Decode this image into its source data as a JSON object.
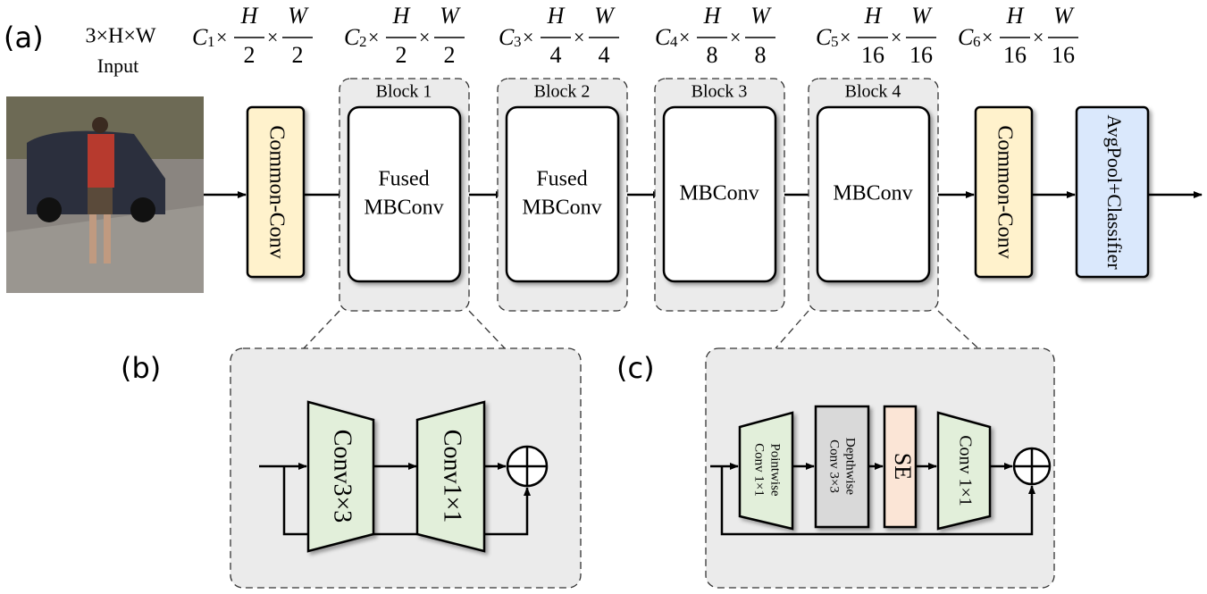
{
  "labels": {
    "a": "(a)",
    "b": "(b)",
    "c": "(c)"
  },
  "input": {
    "dim": "3×H×W",
    "label": "Input"
  },
  "times": "×",
  "dims": [
    {
      "channel": "C",
      "index": "1",
      "height": "H",
      "h_div": "2",
      "width": "W",
      "w_div": "2"
    },
    {
      "channel": "C",
      "index": "2",
      "height": "H",
      "h_div": "2",
      "width": "W",
      "w_div": "2"
    },
    {
      "channel": "C",
      "index": "3",
      "height": "H",
      "h_div": "4",
      "width": "W",
      "w_div": "4"
    },
    {
      "channel": "C",
      "index": "4",
      "height": "H",
      "h_div": "8",
      "width": "W",
      "w_div": "8"
    },
    {
      "channel": "C",
      "index": "5",
      "height": "H",
      "h_div": "16",
      "width": "W",
      "w_div": "16"
    },
    {
      "channel": "C",
      "index": "6",
      "height": "H",
      "h_div": "16",
      "width": "W",
      "w_div": "16"
    }
  ],
  "stages": {
    "stem": "Common-Conv",
    "blocks": [
      {
        "title": "Block 1",
        "lines": [
          "Fused",
          "MBConv"
        ]
      },
      {
        "title": "Block 2",
        "lines": [
          "Fused",
          "MBConv"
        ]
      },
      {
        "title": "Block 3",
        "lines": [
          "MBConv"
        ]
      },
      {
        "title": "Block 4",
        "lines": [
          "MBConv"
        ]
      }
    ],
    "head_conv": "Common-Conv",
    "head": "AvgPool+Classifier"
  },
  "panel_b": {
    "conv_a": "Conv3×3",
    "conv_b": "Conv1×1"
  },
  "panel_c": {
    "pointwise": [
      "Pointwise",
      "Conv 1×1"
    ],
    "depthwise": [
      "Depthwise",
      "Conv  3×3"
    ],
    "se": "SE",
    "conv": "Conv 1×1"
  }
}
